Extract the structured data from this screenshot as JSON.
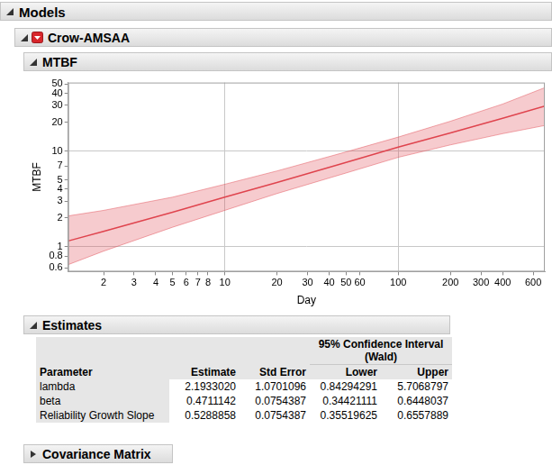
{
  "outline": {
    "root": "Models",
    "model": "Crow-AMSAA",
    "collapsed": "Covariance Matrix"
  },
  "chart_data": {
    "type": "line",
    "title": "MTBF",
    "xlabel": "Day",
    "ylabel": "MTBF",
    "x": [
      1.25,
      2,
      5,
      10,
      20,
      50,
      100,
      200,
      400,
      700
    ],
    "values": [
      1.15,
      1.45,
      2.3,
      3.3,
      4.7,
      7.6,
      11,
      15.5,
      22,
      29.5
    ],
    "lower": [
      0.65,
      0.9,
      1.6,
      2.4,
      3.6,
      5.9,
      8.6,
      11.6,
      15.2,
      18.5
    ],
    "upper": [
      2.1,
      2.4,
      3.3,
      4.5,
      6.2,
      9.8,
      14,
      20.5,
      31,
      46
    ],
    "color": "#e0454e",
    "xlim": [
      1.25,
      700
    ],
    "ylim": [
      0.55,
      52
    ],
    "xticks": [
      2,
      3,
      4,
      5,
      6,
      7,
      8,
      10,
      20,
      30,
      40,
      50,
      60,
      100,
      200,
      300,
      400,
      600
    ],
    "yticks": [
      0.6,
      0.8,
      1,
      2,
      3,
      4,
      5,
      7,
      10,
      20,
      30,
      40,
      50
    ],
    "log": true,
    "grid": true
  },
  "estimates": {
    "title": "Estimates",
    "span_header": "95% Confidence Interval (Wald)",
    "columns": [
      "Parameter",
      "Estimate",
      "Std Error",
      "Lower",
      "Upper"
    ],
    "rows": [
      [
        "lambda",
        "2.1933020",
        "1.0701096",
        "0.84294291",
        "5.7068797"
      ],
      [
        "beta",
        "0.4711142",
        "0.0754387",
        "0.34421111",
        "0.6448037"
      ],
      [
        "Reliability Growth Slope",
        "0.5288858",
        "0.0754387",
        "0.35519625",
        "0.6557889"
      ]
    ]
  }
}
